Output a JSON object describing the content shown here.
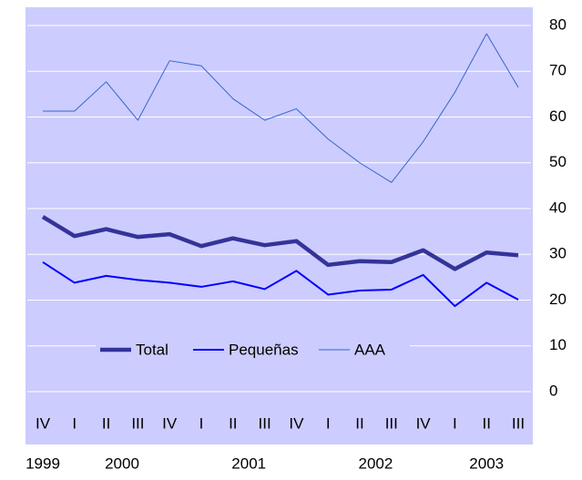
{
  "chart_data": {
    "type": "line",
    "categories": [
      "IV",
      "I",
      "II",
      "III",
      "IV",
      "I",
      "II",
      "III",
      "IV",
      "I",
      "II",
      "III",
      "IV",
      "I",
      "II",
      "III"
    ],
    "years": [
      "1999",
      "2000",
      "2001",
      "2002",
      "2003"
    ],
    "series": [
      {
        "name": "Total",
        "color": "#333399",
        "values": [
          38.2,
          34,
          35.5,
          33.8,
          34.4,
          31.8,
          33.5,
          32,
          32.9,
          27.7,
          28.5,
          28.3,
          30.9,
          26.8,
          30.4,
          29.8
        ]
      },
      {
        "name": "Pequeñas",
        "color": "#0000ff",
        "values": [
          28.3,
          23.8,
          25.3,
          24.4,
          23.8,
          22.9,
          24.1,
          22.4,
          26.4,
          21.2,
          22.1,
          22.3,
          25.5,
          18.7,
          23.8,
          20.1
        ]
      },
      {
        "name": "AAA",
        "color": "#3366cc",
        "values": [
          61.3,
          61.3,
          67.7,
          59.3,
          72.3,
          71.2,
          64,
          59.3,
          61.8,
          55.2,
          50,
          45.7,
          54.6,
          65.4,
          78.2,
          66.5
        ]
      }
    ],
    "ylim": [
      0,
      80
    ],
    "yticks": [
      0,
      10,
      20,
      30,
      40,
      50,
      60,
      70,
      80
    ],
    "y_axis_side": "right",
    "grid": true,
    "legend": "bottom",
    "background": "#ccccff",
    "grid_color": "#ffffff"
  }
}
